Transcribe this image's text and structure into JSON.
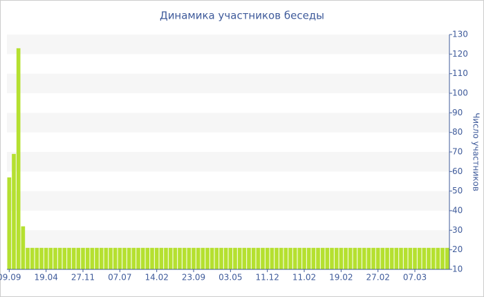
{
  "chart_data": {
    "type": "bar",
    "title": "Динамика участников беседы",
    "y_axis_label": "Число участников",
    "categories": [
      "09.09",
      null,
      null,
      null,
      null,
      null,
      null,
      null,
      "19.04",
      null,
      null,
      null,
      null,
      null,
      null,
      null,
      "27.11",
      null,
      null,
      null,
      null,
      null,
      null,
      null,
      "07.07",
      null,
      null,
      null,
      null,
      null,
      null,
      null,
      "14.02",
      null,
      null,
      null,
      null,
      null,
      null,
      null,
      "23.09",
      null,
      null,
      null,
      null,
      null,
      null,
      null,
      "03.05",
      null,
      null,
      null,
      null,
      null,
      null,
      null,
      "11.12",
      null,
      null,
      null,
      null,
      null,
      null,
      null,
      "11.02",
      null,
      null,
      null,
      null,
      null,
      null,
      null,
      "19.02",
      null,
      null,
      null,
      null,
      null,
      null,
      null,
      "27.02",
      null,
      null,
      null,
      null,
      null,
      null,
      null,
      "07.03",
      null,
      null,
      null,
      null,
      null,
      null,
      null
    ],
    "values": [
      57,
      69,
      123,
      32,
      21,
      21,
      21,
      21,
      21,
      21,
      21,
      21,
      21,
      21,
      21,
      21,
      21,
      21,
      21,
      21,
      21,
      21,
      21,
      21,
      21,
      21,
      21,
      21,
      21,
      21,
      21,
      21,
      21,
      21,
      21,
      21,
      21,
      21,
      21,
      21,
      21,
      21,
      21,
      21,
      21,
      21,
      21,
      21,
      21,
      21,
      21,
      21,
      21,
      21,
      21,
      21,
      21,
      21,
      21,
      21,
      21,
      21,
      21,
      21,
      21,
      21,
      21,
      21,
      21,
      21,
      21,
      21,
      21,
      21,
      21,
      21,
      21,
      21,
      21,
      21,
      21,
      21,
      21,
      21,
      21,
      21,
      21,
      21,
      21,
      21,
      21,
      21,
      21,
      21,
      21,
      21
    ],
    "color": "#b5e030",
    "ylim": [
      10,
      130
    ],
    "yticks": [
      10,
      20,
      30,
      40,
      50,
      60,
      70,
      80,
      90,
      100,
      110,
      120,
      130
    ],
    "y_axis_side": "right",
    "stripes": true
  }
}
